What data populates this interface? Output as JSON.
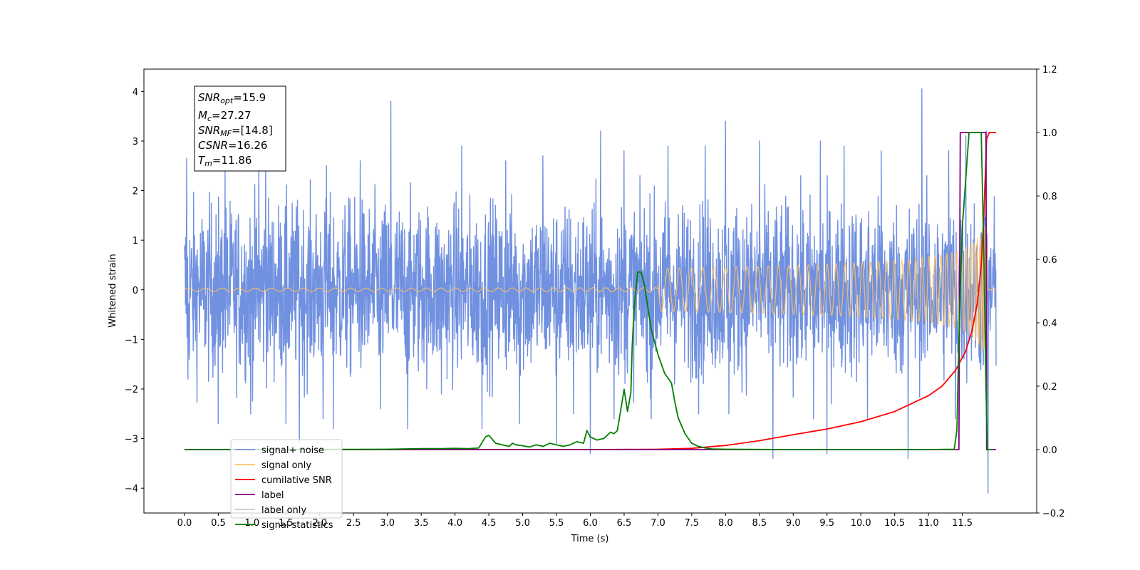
{
  "chart_data": {
    "type": "line",
    "xlabel": "Time (s)",
    "ylabel_left": "Whitened strain",
    "xlim": [
      -0.6,
      12.6
    ],
    "ylim_left": [
      -4.5,
      4.45
    ],
    "ylim_right": [
      -0.2,
      1.2
    ],
    "x_ticks": [
      "0.0",
      "0.5",
      "1.0",
      "1.5",
      "2.0",
      "2.5",
      "3.0",
      "3.5",
      "4.0",
      "4.5",
      "5.0",
      "5.5",
      "6.0",
      "6.5",
      "7.0",
      "7.5",
      "8.0",
      "8.5",
      "9.0",
      "9.5",
      "10.0",
      "10.5",
      "11.0",
      "11.5"
    ],
    "y_ticks_left": [
      "4",
      "3",
      "2",
      "1",
      "0",
      "−1",
      "−2",
      "−3",
      "−4"
    ],
    "y_ticks_right": [
      "1.2",
      "1.0",
      "0.8",
      "0.6",
      "0.4",
      "0.2",
      "0.0",
      "−0.2"
    ],
    "info_box": {
      "snr_opt": {
        "main": "SNR",
        "sub": "opt",
        "value": "=15.9"
      },
      "mc": {
        "main": "M",
        "sub": "c",
        "value": "=27.27"
      },
      "snr_mf": {
        "main": "SNR",
        "sub": "MF",
        "value": "=[14.8]"
      },
      "csnr": {
        "main": "CSNR",
        "sub": "",
        "value": "=16.26"
      },
      "tm": {
        "main": "T",
        "sub": "m",
        "value": "=11.86"
      }
    },
    "legend": [
      {
        "name": "signal+ noise",
        "color": "#7090e0"
      },
      {
        "name": "signal only",
        "color": "#ffc060"
      },
      {
        "name": "cumilative SNR",
        "color": "#ff0000"
      },
      {
        "name": "label",
        "color": "#800080"
      },
      {
        "name": "label only",
        "color": "#c8c8c8"
      },
      {
        "name": "signal statistics",
        "color": "#008000"
      }
    ],
    "series": [
      {
        "name": "signal+ noise",
        "axis": "left",
        "color": "#7090e0",
        "envelope": {
          "x_start": 0.0,
          "x_end": 12.0,
          "typical_high": 1.8,
          "typical_low": -1.8
        },
        "spikes_up": [
          [
            0.03,
            2.65
          ],
          [
            0.6,
            2.4
          ],
          [
            1.1,
            2.6
          ],
          [
            1.2,
            2.5
          ],
          [
            2.1,
            2.5
          ],
          [
            2.6,
            2.6
          ],
          [
            3.05,
            3.8
          ],
          [
            4.1,
            2.9
          ],
          [
            4.75,
            2.6
          ],
          [
            5.3,
            2.7
          ],
          [
            6.0,
            2.7
          ],
          [
            6.15,
            3.2
          ],
          [
            6.5,
            2.8
          ],
          [
            7.15,
            2.9
          ],
          [
            7.7,
            2.9
          ],
          [
            8.0,
            3.4
          ],
          [
            8.5,
            3.0
          ],
          [
            9.4,
            3.0
          ],
          [
            9.75,
            2.9
          ],
          [
            10.3,
            2.8
          ],
          [
            10.9,
            4.05
          ],
          [
            11.3,
            2.8
          ],
          [
            11.55,
            3.1
          ],
          [
            11.85,
            3.2
          ]
        ],
        "spikes_down": [
          [
            0.05,
            -1.8
          ],
          [
            0.5,
            -2.7
          ],
          [
            0.98,
            -2.5
          ],
          [
            1.5,
            -2.7
          ],
          [
            1.7,
            -3.1
          ],
          [
            2.05,
            -2.6
          ],
          [
            2.2,
            -2.8
          ],
          [
            2.9,
            -2.4
          ],
          [
            3.3,
            -2.8
          ],
          [
            3.8,
            -2.1
          ],
          [
            4.4,
            -2.8
          ],
          [
            4.95,
            -2.7
          ],
          [
            5.5,
            -3.1
          ],
          [
            5.75,
            -2.5
          ],
          [
            6.0,
            -3.3
          ],
          [
            6.35,
            -2.6
          ],
          [
            6.9,
            -2.6
          ],
          [
            7.6,
            -2.5
          ],
          [
            8.05,
            -2.5
          ],
          [
            8.7,
            -3.4
          ],
          [
            9.3,
            -2.6
          ],
          [
            9.5,
            -3.3
          ],
          [
            10.1,
            -2.6
          ],
          [
            10.7,
            -3.4
          ],
          [
            11.4,
            -2.6
          ],
          [
            11.88,
            -4.1
          ]
        ]
      },
      {
        "name": "signal only",
        "axis": "left",
        "color": "#ffc060",
        "chirp": {
          "x_start": 0.0,
          "x_end": 11.86,
          "final_amplitude": 1.3,
          "min_cycles_per_s": 4.0,
          "max_cycles_per_s": 40.0
        }
      },
      {
        "name": "cumilative SNR",
        "axis": "right",
        "color": "#ff0000",
        "x": [
          0,
          6,
          7,
          7.5,
          8,
          8.5,
          9,
          9.5,
          10,
          10.5,
          11,
          11.2,
          11.4,
          11.55,
          11.65,
          11.72,
          11.78,
          11.82,
          11.86,
          11.9,
          12.0
        ],
        "y": [
          0,
          0,
          0.001,
          0.004,
          0.013,
          0.028,
          0.047,
          0.065,
          0.088,
          0.12,
          0.17,
          0.2,
          0.25,
          0.31,
          0.38,
          0.46,
          0.58,
          0.75,
          0.98,
          1.0,
          1.0
        ]
      },
      {
        "name": "label",
        "axis": "right",
        "color": "#800080",
        "x": [
          0,
          11.45,
          11.47,
          11.85,
          11.86,
          12.0
        ],
        "y": [
          0,
          0,
          1.0,
          1.0,
          0,
          0
        ]
      },
      {
        "name": "signal statistics",
        "axis": "right",
        "color": "#008000",
        "x": [
          0,
          3.0,
          3.5,
          3.8,
          4.0,
          4.2,
          4.35,
          4.45,
          4.5,
          4.6,
          4.7,
          4.8,
          4.85,
          4.9,
          5.0,
          5.1,
          5.2,
          5.3,
          5.4,
          5.5,
          5.6,
          5.7,
          5.8,
          5.9,
          5.95,
          6.0,
          6.1,
          6.2,
          6.3,
          6.35,
          6.4,
          6.5,
          6.55,
          6.6,
          6.62,
          6.65,
          6.7,
          6.75,
          6.8,
          6.85,
          6.9,
          7.0,
          7.1,
          7.2,
          7.25,
          7.3,
          7.4,
          7.5,
          7.6,
          7.7,
          7.8,
          8.0,
          9.0,
          10.0,
          11.0,
          11.38,
          11.42,
          11.45,
          11.5,
          11.6,
          11.7,
          11.78,
          11.82,
          11.85,
          11.87,
          11.9,
          11.95
        ],
        "y": [
          0,
          0.001,
          0.003,
          0.003,
          0.004,
          0.003,
          0.005,
          0.04,
          0.045,
          0.02,
          0.015,
          0.01,
          0.02,
          0.015,
          0.012,
          0.008,
          0.015,
          0.01,
          0.02,
          0.015,
          0.01,
          0.015,
          0.025,
          0.02,
          0.06,
          0.04,
          0.03,
          0.035,
          0.055,
          0.05,
          0.06,
          0.19,
          0.12,
          0.18,
          0.33,
          0.45,
          0.56,
          0.56,
          0.52,
          0.45,
          0.38,
          0.3,
          0.24,
          0.21,
          0.15,
          0.1,
          0.05,
          0.02,
          0.01,
          0.005,
          0.002,
          0.001,
          0,
          0,
          0,
          0.001,
          0.06,
          0.35,
          0.7,
          1.0,
          1.0,
          1.0,
          0.6,
          0.2,
          0.001,
          0,
          0
        ]
      }
    ]
  }
}
